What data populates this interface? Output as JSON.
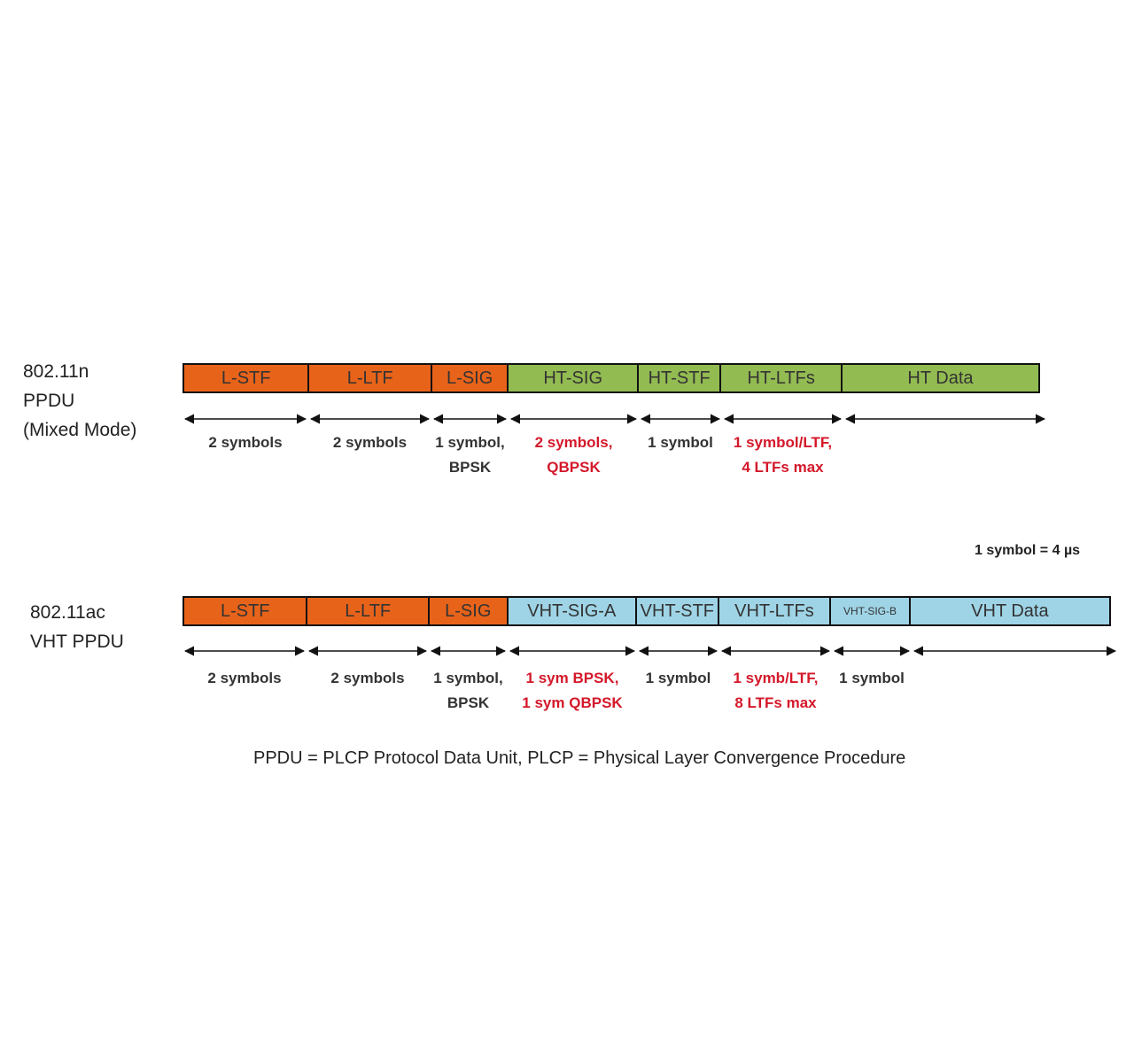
{
  "colors": {
    "legacy": "#e8631a",
    "ht": "#92bb51",
    "vht": "#9fd4e6",
    "red_text": "#d4182a",
    "black_text": "#333333"
  },
  "ht": {
    "label_lines": [
      "802.11n",
      "PPDU",
      "(Mixed Mode)"
    ],
    "fields": [
      {
        "name": "L-STF",
        "kind": "legacy"
      },
      {
        "name": "L-LTF",
        "kind": "legacy"
      },
      {
        "name": "L-SIG",
        "kind": "legacy"
      },
      {
        "name": "HT-SIG",
        "kind": "ht"
      },
      {
        "name": "HT-STF",
        "kind": "ht"
      },
      {
        "name": "HT-LTFs",
        "kind": "ht"
      },
      {
        "name": "HT Data",
        "kind": "ht"
      }
    ],
    "annotations": [
      {
        "lines": [
          "2 symbols"
        ],
        "color": "black"
      },
      {
        "lines": [
          "2 symbols"
        ],
        "color": "black"
      },
      {
        "lines": [
          "1 symbol,",
          "BPSK"
        ],
        "color": "black"
      },
      {
        "lines": [
          "2 symbols,",
          "QBPSK"
        ],
        "color": "red"
      },
      {
        "lines": [
          "1 symbol"
        ],
        "color": "black"
      },
      {
        "lines": [
          "1 symbol/LTF,",
          "4 LTFs max"
        ],
        "color": "red"
      },
      {
        "lines": [],
        "color": "black"
      }
    ]
  },
  "vht": {
    "label_lines": [
      "802.11ac",
      "VHT PPDU"
    ],
    "fields": [
      {
        "name": "L-STF",
        "kind": "legacy"
      },
      {
        "name": "L-LTF",
        "kind": "legacy"
      },
      {
        "name": "L-SIG",
        "kind": "legacy"
      },
      {
        "name": "VHT-SIG-A",
        "kind": "vht"
      },
      {
        "name": "VHT-STF",
        "kind": "vht"
      },
      {
        "name": "VHT-LTFs",
        "kind": "vht"
      },
      {
        "name": "VHT-SIG-B",
        "kind": "vht"
      },
      {
        "name": "VHT Data",
        "kind": "vht"
      }
    ],
    "annotations": [
      {
        "lines": [
          "2 symbols"
        ],
        "color": "black"
      },
      {
        "lines": [
          "2 symbols"
        ],
        "color": "black"
      },
      {
        "lines": [
          "1 symbol,",
          "BPSK"
        ],
        "color": "black"
      },
      {
        "lines": [
          "1 sym BPSK,",
          "1 sym QBPSK"
        ],
        "color": "red"
      },
      {
        "lines": [
          "1 symbol"
        ],
        "color": "black"
      },
      {
        "lines": [
          "1 symb/LTF,",
          "8 LTFs max"
        ],
        "color": "red"
      },
      {
        "lines": [
          "1 symbol"
        ],
        "color": "black"
      },
      {
        "lines": [],
        "color": "black"
      }
    ]
  },
  "symbol_note": "1 symbol = 4 µs",
  "footnote": "PPDU = PLCP Protocol Data Unit, PLCP = Physical Layer Convergence Procedure"
}
